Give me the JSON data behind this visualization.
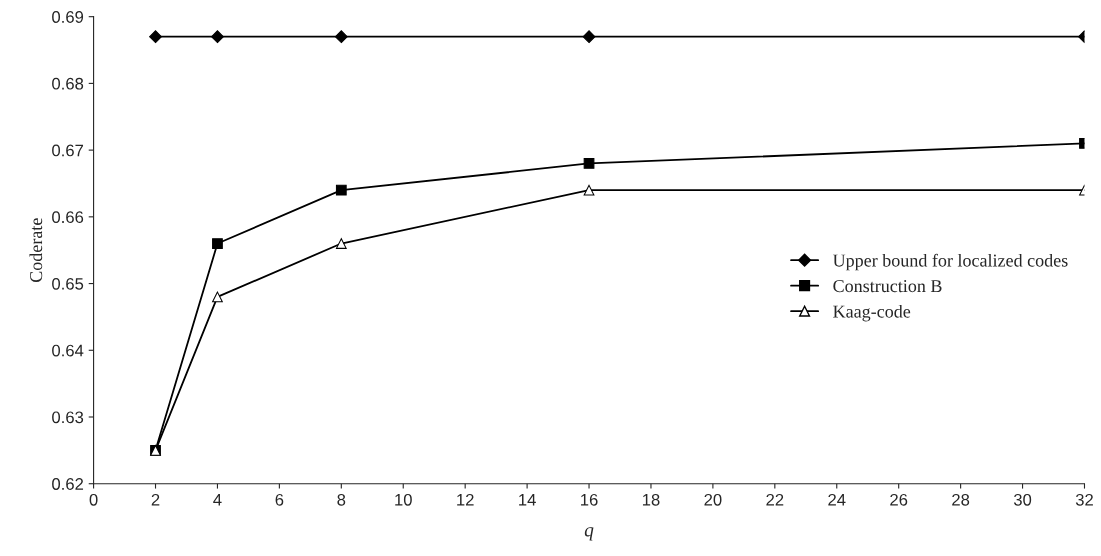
{
  "chart_data": {
    "type": "line",
    "xlabel": "q",
    "ylabel": "Coderate",
    "x": [
      2,
      4,
      8,
      16,
      32
    ],
    "series": [
      {
        "name": "Upper bound for localized codes",
        "color": "#000000",
        "marker": "diamond",
        "values": [
          0.687,
          0.687,
          0.687,
          0.687,
          0.687
        ]
      },
      {
        "name": "Construction B",
        "color": "#000000",
        "marker": "square",
        "values": [
          0.625,
          0.656,
          0.664,
          0.668,
          0.671
        ]
      },
      {
        "name": "Kaag-code",
        "color": "#000000",
        "marker": "triangle",
        "values": [
          0.625,
          0.648,
          0.656,
          0.664,
          0.664
        ]
      }
    ],
    "xlim": [
      0,
      32
    ],
    "xticks": [
      0,
      2,
      4,
      6,
      8,
      10,
      12,
      14,
      16,
      18,
      20,
      22,
      24,
      26,
      28,
      30,
      32
    ],
    "ylim": [
      0.62,
      0.69
    ],
    "yticks": [
      0.62,
      0.63,
      0.64,
      0.65,
      0.66,
      0.67,
      0.68,
      0.69
    ],
    "grid": false,
    "legend": "right",
    "line_style": "solid"
  }
}
